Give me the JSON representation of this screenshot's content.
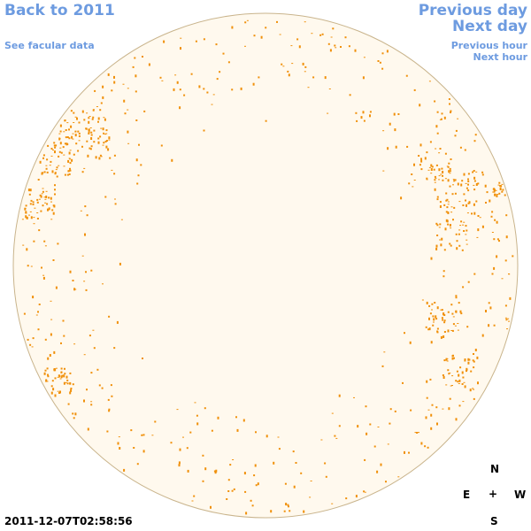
{
  "nav": {
    "back_label": "Back to 2011",
    "facular_label": "See facular data",
    "prev_day_label": "Previous day",
    "next_day_label": "Next day",
    "prev_hour_label": "Previous hour",
    "next_hour_label": "Next hour"
  },
  "compass": {
    "north": "N",
    "south": "S",
    "east": "E",
    "west": "W",
    "center": "+"
  },
  "timestamp": "2011-12-07T02:58:56",
  "colors": {
    "disk_fill": "#fff9ee",
    "disk_stroke": "#c9b48c",
    "facula": "#f0900a",
    "link": "#6d9be0"
  }
}
